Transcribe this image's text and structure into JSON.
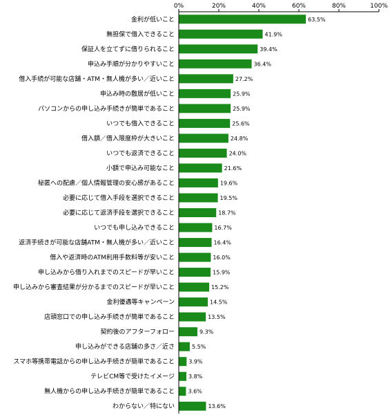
{
  "chart_data": {
    "type": "bar",
    "orientation": "horizontal",
    "bar_color": "#1a8a1a",
    "xlim": [
      0,
      100
    ],
    "x_ticks": [
      "0%",
      "20%",
      "40%",
      "60%",
      "80%",
      "100%"
    ],
    "value_suffix": "%",
    "grid": false,
    "categories": [
      "金利が低いこと",
      "無担保で借入できること",
      "保証人を立てずに借りられること",
      "申込み手順が分かりやすいこと",
      "借入手続が可能な店舗・ATM・無人機が多い／近いこと",
      "申込み時の敷居が低いこと",
      "パソコンからの申し込み手続きが簡単であること",
      "いつでも借入できること",
      "借入額／借入限度枠が大きいこと",
      "いつでも返済できること",
      "小額で申込み可能なこと",
      "秘匿への配慮／個人情報管理の安心感があること",
      "必要に応じて借入手段を選択できること",
      "必要に応じて返済手段を選択できること",
      "いつでも申し込みできること",
      "返済手続きが可能な店舗ATM・無人機が多い／近いこと",
      "借入や返済時のATM利用手数料等が安いこと",
      "申し込みから借り入れまでのスピードが早いこと",
      "申し込みから審査結果が分かるまでのスピードが早いこと",
      "金利優遇等キャンペーン",
      "店頭窓口での申し込み手続きが簡単であること",
      "契約後のアフターフォロー",
      "申し込みができる店舗の多さ／近さ",
      "スマホ等携帯電話からの申し込み手続きが簡単であること",
      "テレビCM等で受けたイメージ",
      "無人機からの申し込み手続きが簡単であること",
      "わからない／特にない"
    ],
    "values": [
      63.5,
      41.9,
      39.4,
      36.4,
      27.2,
      25.9,
      25.9,
      25.6,
      24.8,
      24.0,
      21.6,
      19.6,
      19.5,
      18.7,
      16.7,
      16.4,
      16.0,
      15.9,
      15.2,
      14.5,
      13.5,
      9.3,
      5.5,
      3.9,
      3.8,
      3.6,
      13.6
    ],
    "value_labels": [
      "63.5%",
      "41.9%",
      "39.4%",
      "36.4%",
      "27.2%",
      "25.9%",
      "25.9%",
      "25.6%",
      "24.8%",
      "24.0%",
      "21.6%",
      "19.6%",
      "19.5%",
      "18.7%",
      "16.7%",
      "16.4%",
      "16.0%",
      "15.9%",
      "15.2%",
      "14.5%",
      "13.5%",
      "9.3%",
      "5.5%",
      "3.9%",
      "3.8%",
      "3.6%",
      "13.6%"
    ]
  }
}
